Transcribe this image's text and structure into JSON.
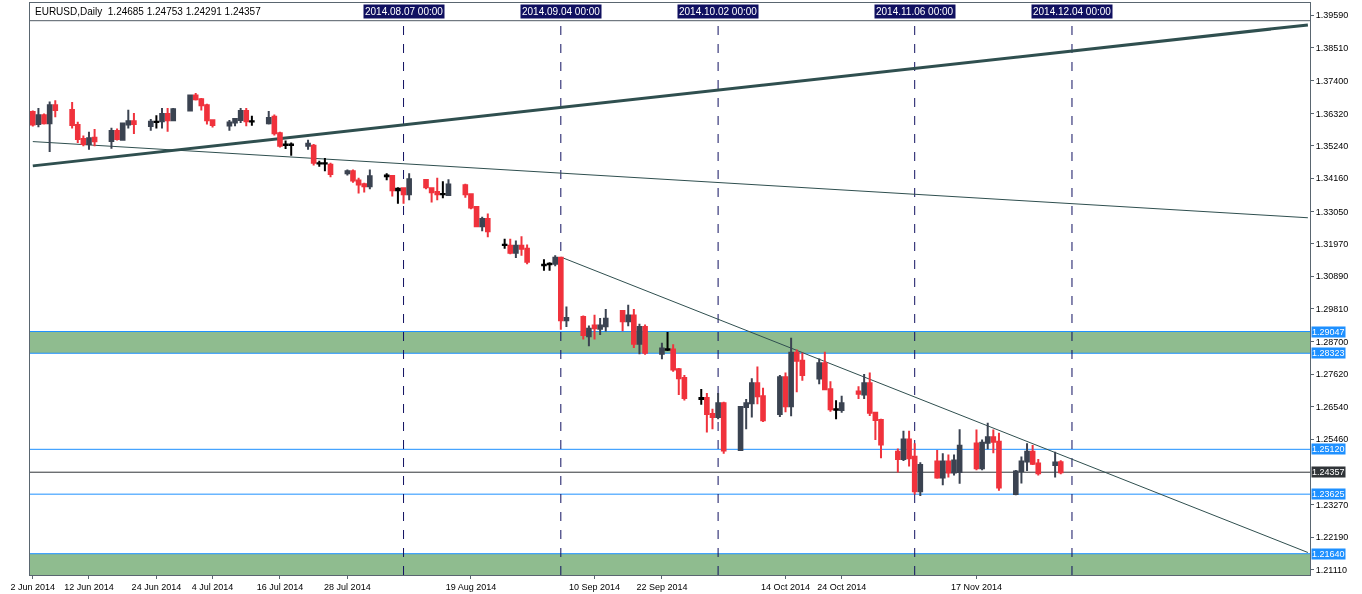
{
  "chart_data": {
    "type": "candlestick",
    "title": "EURUSD,Daily  1.24685 1.24753 1.24291 1.24357",
    "x": [
      "2014-06-02",
      "2014-06-03",
      "2014-06-04",
      "2014-06-05",
      "2014-06-06",
      "2014-06-09",
      "2014-06-10",
      "2014-06-11",
      "2014-06-12",
      "2014-06-13",
      "2014-06-16",
      "2014-06-17",
      "2014-06-18",
      "2014-06-19",
      "2014-06-20",
      "2014-06-23",
      "2014-06-24",
      "2014-06-25",
      "2014-06-26",
      "2014-06-27",
      "2014-06-30",
      "2014-07-01",
      "2014-07-02",
      "2014-07-03",
      "2014-07-04",
      "2014-07-07",
      "2014-07-08",
      "2014-07-09",
      "2014-07-10",
      "2014-07-11",
      "2014-07-14",
      "2014-07-15",
      "2014-07-16",
      "2014-07-17",
      "2014-07-18",
      "2014-07-21",
      "2014-07-22",
      "2014-07-23",
      "2014-07-24",
      "2014-07-25",
      "2014-07-28",
      "2014-07-29",
      "2014-07-30",
      "2014-07-31",
      "2014-08-01",
      "2014-08-04",
      "2014-08-05",
      "2014-08-06",
      "2014-08-07",
      "2014-08-08",
      "2014-08-11",
      "2014-08-12",
      "2014-08-13",
      "2014-08-14",
      "2014-08-15",
      "2014-08-18",
      "2014-08-19",
      "2014-08-20",
      "2014-08-21",
      "2014-08-22",
      "2014-08-25",
      "2014-08-26",
      "2014-08-27",
      "2014-08-28",
      "2014-08-29",
      "2014-09-01",
      "2014-09-02",
      "2014-09-03",
      "2014-09-04",
      "2014-09-05",
      "2014-09-08",
      "2014-09-09",
      "2014-09-10",
      "2014-09-11",
      "2014-09-12",
      "2014-09-15",
      "2014-09-16",
      "2014-09-17",
      "2014-09-18",
      "2014-09-19",
      "2014-09-22",
      "2014-09-23",
      "2014-09-24",
      "2014-09-25",
      "2014-09-26",
      "2014-09-29",
      "2014-09-30",
      "2014-10-01",
      "2014-10-02",
      "2014-10-03",
      "2014-10-06",
      "2014-10-07",
      "2014-10-08",
      "2014-10-09",
      "2014-10-10",
      "2014-10-13",
      "2014-10-14",
      "2014-10-15",
      "2014-10-16",
      "2014-10-17",
      "2014-10-20",
      "2014-10-21",
      "2014-10-22",
      "2014-10-23",
      "2014-10-24",
      "2014-10-27",
      "2014-10-28",
      "2014-10-29",
      "2014-10-30",
      "2014-10-31",
      "2014-11-03",
      "2014-11-04",
      "2014-11-05",
      "2014-11-06",
      "2014-11-07",
      "2014-11-10",
      "2014-11-11",
      "2014-11-12",
      "2014-11-13",
      "2014-11-14",
      "2014-11-17",
      "2014-11-18",
      "2014-11-19",
      "2014-11-20",
      "2014-11-21",
      "2014-11-24",
      "2014-11-25",
      "2014-11-26",
      "2014-11-27",
      "2014-11-28",
      "2014-12-01",
      "2014-12-02"
    ],
    "ohlc": [
      [
        1.3637,
        1.3642,
        1.3588,
        1.3595
      ],
      [
        1.3597,
        1.365,
        1.3586,
        1.3626
      ],
      [
        1.3626,
        1.3632,
        1.3595,
        1.3599
      ],
      [
        1.3599,
        1.3672,
        1.3503,
        1.3659
      ],
      [
        1.3659,
        1.3676,
        1.3619,
        1.3643
      ],
      [
        1.3643,
        1.367,
        1.3582,
        1.3593
      ],
      [
        1.3593,
        1.3604,
        1.3533,
        1.3547
      ],
      [
        1.3547,
        1.3558,
        1.3522,
        1.353
      ],
      [
        1.353,
        1.3571,
        1.3511,
        1.3549
      ],
      [
        1.3551,
        1.358,
        1.3522,
        1.3539
      ],
      [
        1.354,
        1.3584,
        1.3514,
        1.3573
      ],
      [
        1.3573,
        1.3582,
        1.3542,
        1.3547
      ],
      [
        1.3544,
        1.3599,
        1.3542,
        1.3598
      ],
      [
        1.3595,
        1.3644,
        1.3582,
        1.3606
      ],
      [
        1.3606,
        1.3633,
        1.3563,
        1.3597
      ],
      [
        1.359,
        1.3613,
        1.3574,
        1.3604
      ],
      [
        1.3603,
        1.3626,
        1.3582,
        1.3604
      ],
      [
        1.3606,
        1.365,
        1.3582,
        1.363
      ],
      [
        1.363,
        1.365,
        1.3571,
        1.3609
      ],
      [
        1.3609,
        1.365,
        1.3609,
        1.3646
      ],
      [
        1.3642,
        1.3695,
        1.364,
        1.3692
      ],
      [
        1.3692,
        1.37,
        1.3675,
        1.3679
      ],
      [
        1.3679,
        1.3683,
        1.3642,
        1.3659
      ],
      [
        1.3659,
        1.3664,
        1.3595,
        1.3609
      ],
      [
        1.3609,
        1.3612,
        1.3585,
        1.3593
      ],
      [
        1.3592,
        1.361,
        1.3574,
        1.3602
      ],
      [
        1.3602,
        1.3617,
        1.3589,
        1.3613
      ],
      [
        1.361,
        1.365,
        1.36,
        1.364
      ],
      [
        1.364,
        1.365,
        1.3589,
        1.3606
      ],
      [
        1.3605,
        1.3624,
        1.3591,
        1.3606
      ],
      [
        1.3599,
        1.364,
        1.3595,
        1.3617
      ],
      [
        1.3621,
        1.3628,
        1.3558,
        1.3566
      ],
      [
        1.3566,
        1.3571,
        1.3518,
        1.3524
      ],
      [
        1.3527,
        1.3542,
        1.3513,
        1.3528
      ],
      [
        1.3527,
        1.3535,
        1.3491,
        1.3528
      ],
      [
        1.3524,
        1.3544,
        1.3511,
        1.3531
      ],
      [
        1.3524,
        1.353,
        1.3458,
        1.3467
      ],
      [
        1.3465,
        1.3474,
        1.3454,
        1.3466
      ],
      [
        1.3465,
        1.3483,
        1.3439,
        1.3466
      ],
      [
        1.3461,
        1.3467,
        1.3419,
        1.343
      ],
      [
        1.3432,
        1.3445,
        1.3425,
        1.3439
      ],
      [
        1.3439,
        1.3445,
        1.3401,
        1.3408
      ],
      [
        1.3408,
        1.3417,
        1.3365,
        1.3395
      ],
      [
        1.3396,
        1.3401,
        1.3368,
        1.3389
      ],
      [
        1.3389,
        1.3445,
        1.3379,
        1.3422
      ],
      [
        1.3422,
        1.3432,
        1.3409,
        1.3425
      ],
      [
        1.3423,
        1.3426,
        1.3355,
        1.3376
      ],
      [
        1.3376,
        1.3386,
        1.3331,
        1.3381
      ],
      [
        1.3382,
        1.3384,
        1.3331,
        1.3362
      ],
      [
        1.3362,
        1.3432,
        1.3342,
        1.3412
      ],
      [
        1.341,
        1.3412,
        1.3379,
        1.3386
      ],
      [
        1.3382,
        1.3386,
        1.3335,
        1.3369
      ],
      [
        1.337,
        1.3417,
        1.3342,
        1.3362
      ],
      [
        1.3362,
        1.3406,
        1.3349,
        1.3363
      ],
      [
        1.336,
        1.3412,
        1.3358,
        1.3395
      ],
      [
        1.3392,
        1.3397,
        1.3351,
        1.3362
      ],
      [
        1.3362,
        1.3365,
        1.3312,
        1.3318
      ],
      [
        1.332,
        1.3323,
        1.3252,
        1.3256
      ],
      [
        1.3256,
        1.3287,
        1.3239,
        1.328
      ],
      [
        1.328,
        1.3298,
        1.3219,
        1.3239
      ],
      [
        1.3193,
        1.3214,
        1.3181,
        1.3194
      ],
      [
        1.3191,
        1.3214,
        1.3162,
        1.3167
      ],
      [
        1.3167,
        1.3208,
        1.315,
        1.3191
      ],
      [
        1.3191,
        1.3222,
        1.3157,
        1.3181
      ],
      [
        1.3181,
        1.3195,
        1.3129,
        1.3137
      ],
      [
        1.3126,
        1.3146,
        1.3107,
        1.3127
      ],
      [
        1.3129,
        1.3136,
        1.3107,
        1.3131
      ],
      [
        1.3131,
        1.3159,
        1.3122,
        1.3151
      ],
      [
        1.3151,
        1.3153,
        1.2911,
        1.2942
      ],
      [
        1.2942,
        1.2988,
        1.292,
        1.295
      ],
      [
        1.2953,
        1.2958,
        1.2878,
        1.2893
      ],
      [
        1.2889,
        1.2925,
        1.2856,
        1.2914
      ],
      [
        1.2925,
        1.2961,
        1.2878,
        1.2916
      ],
      [
        1.2914,
        1.295,
        1.2893,
        1.2925
      ],
      [
        1.2922,
        1.298,
        1.2905,
        1.2947
      ],
      [
        1.2973,
        1.2975,
        1.2906,
        1.2939
      ],
      [
        1.2939,
        1.2994,
        1.2922,
        1.2958
      ],
      [
        1.2958,
        1.298,
        1.285,
        1.2864
      ],
      [
        1.2864,
        1.2931,
        1.2829,
        1.292
      ],
      [
        1.292,
        1.2928,
        1.2827,
        1.2834
      ],
      [
        1.2831,
        1.2867,
        1.2812,
        1.2848
      ],
      [
        1.2844,
        1.2903,
        1.284,
        1.2846
      ],
      [
        1.2845,
        1.2862,
        1.2771,
        1.2778
      ],
      [
        1.2779,
        1.2783,
        1.2693,
        1.2749
      ],
      [
        1.275,
        1.276,
        1.2675,
        1.2683
      ],
      [
        1.268,
        1.2713,
        1.2661,
        1.2683
      ],
      [
        1.2683,
        1.27,
        1.2568,
        1.263
      ],
      [
        1.263,
        1.2647,
        1.2579,
        1.262
      ],
      [
        1.262,
        1.27,
        1.2612,
        1.2666
      ],
      [
        1.2666,
        1.2671,
        1.2497,
        1.2508
      ],
      [
        1.251,
        1.2656,
        1.2508,
        1.2653
      ],
      [
        1.2653,
        1.268,
        1.2579,
        1.2666
      ],
      [
        1.2666,
        1.2749,
        1.2618,
        1.2732
      ],
      [
        1.2732,
        1.2788,
        1.2662,
        1.2689
      ],
      [
        1.2689,
        1.2717,
        1.2603,
        1.2609
      ],
      [
        1.263,
        1.276,
        1.262,
        1.2752
      ],
      [
        1.2752,
        1.2768,
        1.2636,
        1.2656
      ],
      [
        1.2656,
        1.2884,
        1.2622,
        1.2834
      ],
      [
        1.2834,
        1.2845,
        1.2702,
        1.2807
      ],
      [
        1.2807,
        1.2834,
        1.2741,
        1.276
      ],
      [
        1.2748,
        1.2815,
        1.2729,
        1.2799
      ],
      [
        1.2799,
        1.2837,
        1.2712,
        1.2712
      ],
      [
        1.2712,
        1.2739,
        1.2637,
        1.2646
      ],
      [
        1.2644,
        1.2676,
        1.2612,
        1.2646
      ],
      [
        1.2643,
        1.2691,
        1.2634,
        1.2666
      ],
      [
        1.2705,
        1.2722,
        1.268,
        1.2697
      ],
      [
        1.2695,
        1.2763,
        1.268,
        1.2732
      ],
      [
        1.2732,
        1.2768,
        1.2623,
        1.2634
      ],
      [
        1.2634,
        1.2636,
        1.2543,
        1.261
      ],
      [
        1.261,
        1.2614,
        1.2482,
        1.2528
      ],
      [
        1.2504,
        1.2515,
        1.2435,
        1.248
      ],
      [
        1.248,
        1.2574,
        1.2473,
        1.2545
      ],
      [
        1.2545,
        1.2574,
        1.2455,
        1.2482
      ],
      [
        1.2487,
        1.2532,
        1.2361,
        1.2372
      ],
      [
        1.2372,
        1.2469,
        1.2356,
        1.246
      ],
      [
        1.2471,
        1.251,
        1.2414,
        1.2418
      ],
      [
        1.2418,
        1.2499,
        1.2392,
        1.2471
      ],
      [
        1.2471,
        1.2495,
        1.2418,
        1.2435
      ],
      [
        1.2435,
        1.2495,
        1.2425,
        1.2475
      ],
      [
        1.2436,
        1.2579,
        1.2397,
        1.2524
      ],
      [
        1.2531,
        1.2578,
        1.2442,
        1.2449
      ],
      [
        1.2449,
        1.2545,
        1.2442,
        1.2534
      ],
      [
        1.2534,
        1.2601,
        1.2512,
        1.2552
      ],
      [
        1.2552,
        1.2578,
        1.2499,
        1.2537
      ],
      [
        1.2537,
        1.2567,
        1.2374,
        1.2385
      ],
      [
        1.2363,
        1.2443,
        1.2359,
        1.2438
      ],
      [
        1.244,
        1.2488,
        1.2398,
        1.2471
      ],
      [
        1.2471,
        1.2532,
        1.244,
        1.2504
      ],
      [
        1.2504,
        1.2526,
        1.246,
        1.2464
      ],
      [
        1.2465,
        1.248,
        1.2425,
        1.2432
      ],
      [
        1.246,
        1.2504,
        1.2418,
        1.2468
      ],
      [
        1.24685,
        1.24753,
        1.24291,
        1.24357
      ]
    ],
    "colors": [
      "#f0323c",
      "#3b4351",
      "#f0323c",
      "#3b4351",
      "#f0323c",
      "#f0323c",
      "#f0323c",
      "#f0323c",
      "#3b4351",
      "#f0323c",
      "#3b4351",
      "#f0323c",
      "#3b4351",
      "#3b4351",
      "#f0323c",
      "#3b4351",
      "#000000",
      "#3b4351",
      "#f0323c",
      "#3b4351",
      "#3b4351",
      "#f0323c",
      "#f0323c",
      "#f0323c",
      "#f0323c",
      "#3b4351",
      "#3b4351",
      "#3b4351",
      "#f0323c",
      "#000000",
      "#3b4351",
      "#f0323c",
      "#f0323c",
      "#000000",
      "#000000",
      "#3b4351",
      "#f0323c",
      "#000000",
      "#000000",
      "#f0323c",
      "#3b4351",
      "#f0323c",
      "#f0323c",
      "#f0323c",
      "#3b4351",
      "#000000",
      "#f0323c",
      "#000000",
      "#f0323c",
      "#3b4351",
      "#f0323c",
      "#f0323c",
      "#f0323c",
      "#000000",
      "#3b4351",
      "#f0323c",
      "#f0323c",
      "#f0323c",
      "#3b4351",
      "#f0323c",
      "#000000",
      "#f0323c",
      "#3b4351",
      "#f0323c",
      "#f0323c",
      "#000000",
      "#000000",
      "#3b4351",
      "#f0323c",
      "#3b4351",
      "#f0323c",
      "#3b4351",
      "#f0323c",
      "#3b4351",
      "#3b4351",
      "#f0323c",
      "#3b4351",
      "#f0323c",
      "#3b4351",
      "#f0323c",
      "#3b4351",
      "#000000",
      "#f0323c",
      "#f0323c",
      "#f0323c",
      "#000000",
      "#f0323c",
      "#f0323c",
      "#3b4351",
      "#f0323c",
      "#3b4351",
      "#3b4351",
      "#3b4351",
      "#f0323c",
      "#f0323c",
      "#3b4351",
      "#f0323c",
      "#3b4351",
      "#f0323c",
      "#f0323c",
      "#3b4351",
      "#f0323c",
      "#f0323c",
      "#000000",
      "#3b4351",
      "#f0323c",
      "#3b4351",
      "#f0323c",
      "#f0323c",
      "#f0323c",
      "#f0323c",
      "#3b4351",
      "#f0323c",
      "#f0323c",
      "#3b4351",
      "#f0323c",
      "#3b4351",
      "#f0323c",
      "#3b4351",
      "#3b4351",
      "#f0323c",
      "#3b4351",
      "#3b4351",
      "#f0323c",
      "#f0323c",
      "#3b4351",
      "#3b4351",
      "#3b4351",
      "#f0323c",
      "#f0323c",
      "#3b4351",
      "#f0323c"
    ],
    "series": [
      {
        "type": "line",
        "color": "#2f4f4f",
        "x": [
          "2014-06-02",
          "2015-01-15"
        ],
        "values": [
          1.3457,
          1.3927
        ]
      },
      {
        "type": "line",
        "color": "#2f4f4f",
        "x": [
          "2014-06-02",
          "2015-01-15"
        ],
        "values": [
          1.3538,
          1.3284
        ]
      },
      {
        "type": "line",
        "color": "#2f4f4f",
        "x": [
          "2014-09-04",
          "2015-01-15"
        ],
        "values": [
          1.3153,
          1.2168
        ]
      }
    ],
    "xlim": [
      "2014-06-01T12:00",
      "2015-01-15T09:00"
    ],
    "xticks": [
      {
        "value": "2014-06-02",
        "label": "2 Jun 2014"
      },
      {
        "value": "2014-06-12",
        "label": "12 Jun 2014"
      },
      {
        "value": "2014-06-24",
        "label": "24 Jun 2014"
      },
      {
        "value": "2014-07-04",
        "label": "4 Jul 2014"
      },
      {
        "value": "2014-07-16",
        "label": "16 Jul 2014"
      },
      {
        "value": "2014-07-28",
        "label": "28 Jul 2014"
      },
      {
        "value": "2014-08-19",
        "label": "19 Aug 2014"
      },
      {
        "value": "2014-09-10",
        "label": "10 Sep 2014"
      },
      {
        "value": "2014-09-22",
        "label": "22 Sep 2014"
      },
      {
        "value": "2014-10-14",
        "label": "14 Oct 2014"
      },
      {
        "value": "2014-10-24",
        "label": "24 Oct 2014"
      },
      {
        "value": "2014-11-17",
        "label": "17 Nov 2014"
      }
    ],
    "ylim": [
      1.2093,
      1.4
    ],
    "yticks": [
      {
        "value": 1.3959,
        "label": "1.39590"
      },
      {
        "value": 1.3851,
        "label": "1.38510"
      },
      {
        "value": 1.374,
        "label": "1.37400"
      },
      {
        "value": 1.3632,
        "label": "1.36320"
      },
      {
        "value": 1.3524,
        "label": "1.35240"
      },
      {
        "value": 1.3416,
        "label": "1.34160"
      },
      {
        "value": 1.3305,
        "label": "1.33050"
      },
      {
        "value": 1.3197,
        "label": "1.31970"
      },
      {
        "value": 1.3089,
        "label": "1.30890"
      },
      {
        "value": 1.2981,
        "label": "1.29810"
      },
      {
        "value": 1.287,
        "label": "1.28700"
      },
      {
        "value": 1.2762,
        "label": "1.27620"
      },
      {
        "value": 1.2654,
        "label": "1.26540"
      },
      {
        "value": 1.2546,
        "label": "1.25460"
      },
      {
        "value": 1.2327,
        "label": "1.23270"
      },
      {
        "value": 1.2219,
        "label": "1.22190"
      },
      {
        "value": 1.2111,
        "label": "1.21110"
      }
    ],
    "bands": [
      {
        "axis": "y",
        "from": 1.28323,
        "to": 1.29047,
        "color": "#8fbc8f"
      },
      {
        "axis": "y",
        "from": 1.2093,
        "to": 1.2164,
        "color": "#8fbc8f"
      }
    ],
    "ref_lines": [
      {
        "axis": "y",
        "value": 1.3941,
        "color": "#505a64"
      },
      {
        "axis": "y",
        "value": 1.29047,
        "label": "1.29047",
        "color": "#1e90ff"
      },
      {
        "axis": "y",
        "value": 1.28323,
        "label": "1.28323",
        "color": "#1e90ff"
      },
      {
        "axis": "y",
        "value": 1.2512,
        "label": "1.25120",
        "color": "#1e90ff"
      },
      {
        "axis": "y",
        "value": 1.24357,
        "label": "1.24357",
        "color": "#303438"
      },
      {
        "axis": "y",
        "value": 1.23625,
        "label": "1.23625",
        "color": "#1e90ff"
      },
      {
        "axis": "y",
        "value": 1.2164,
        "label": "1.21640",
        "color": "#1e90ff"
      },
      {
        "axis": "x",
        "value": "2014-08-07",
        "label": "2014.08.07 00:00",
        "color": "#101060",
        "line_style": "dashed"
      },
      {
        "axis": "x",
        "value": "2014-09-04",
        "label": "2014.09.04 00:00",
        "color": "#101060",
        "line_style": "dashed"
      },
      {
        "axis": "x",
        "value": "2014-10-02",
        "label": "2014.10.02 00:00",
        "color": "#101060",
        "line_style": "dashed"
      },
      {
        "axis": "x",
        "value": "2014-11-06",
        "label": "2014.11.06 00:00",
        "color": "#101060",
        "line_style": "dashed"
      },
      {
        "axis": "x",
        "value": "2014-12-04",
        "label": "2014.12.04 00:00",
        "color": "#101060",
        "line_style": "dashed"
      }
    ]
  }
}
